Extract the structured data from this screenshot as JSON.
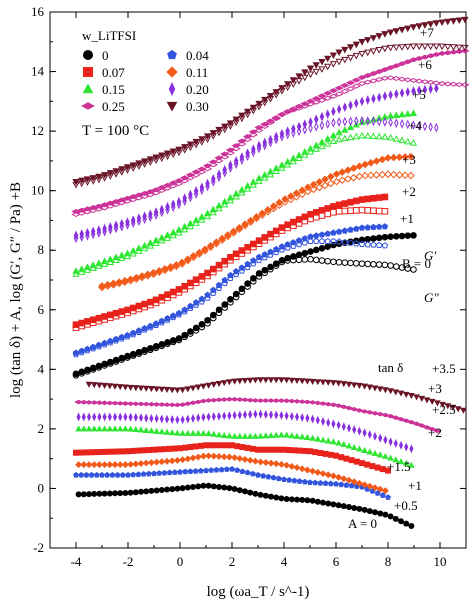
{
  "chart_data": {
    "type": "scatter",
    "title": "",
    "xlabel": "log (ωa_T / s^-1)",
    "ylabel": "log (tan δ) + A,  log (G′, G″ / Pa) +B",
    "xlim": [
      -5,
      11
    ],
    "ylim": [
      -2,
      16
    ],
    "xticks": [
      "-4",
      "-2",
      "0",
      "2",
      "4",
      "6",
      "8",
      "10"
    ],
    "yticks": [
      "-2",
      "0",
      "2",
      "4",
      "6",
      "8",
      "10",
      "12",
      "14",
      "16"
    ],
    "grid": false,
    "legend_title": "w_LiTFSI",
    "legend_placement": "top-left",
    "temperature_label": "T = 100 °C",
    "series": [
      {
        "name": "0",
        "color": "#000000",
        "marker": "circle",
        "shift_G": "B = 0",
        "shift_tan": "A = 0",
        "Gp_x": [
          -4,
          -3,
          -2,
          -1,
          0,
          1,
          2,
          3,
          4,
          5,
          6,
          7,
          8,
          9
        ],
        "Gp_y": [
          3.85,
          4.15,
          4.45,
          4.75,
          5.05,
          5.6,
          6.4,
          7.2,
          7.7,
          7.95,
          8.2,
          8.35,
          8.45,
          8.5
        ],
        "Gpp_x": [
          -4,
          -3,
          -2,
          -1,
          0,
          1,
          2,
          3,
          4,
          5,
          6,
          7,
          8,
          9
        ],
        "Gpp_y": [
          3.8,
          4.1,
          4.4,
          4.7,
          5.0,
          5.5,
          6.3,
          7.1,
          7.65,
          7.7,
          7.6,
          7.55,
          7.5,
          7.35
        ],
        "tan_x": [
          -3.9,
          -2,
          0,
          1,
          2,
          3,
          4,
          5,
          6,
          7,
          8,
          9
        ],
        "tan_y": [
          -0.2,
          -0.15,
          0.0,
          0.1,
          0.0,
          -0.2,
          -0.35,
          -0.4,
          -0.55,
          -0.7,
          -0.9,
          -1.3
        ]
      },
      {
        "name": "0.07",
        "color": "#e8231c",
        "marker": "square",
        "shift_G": "+2",
        "shift_tan": "+1.5",
        "Gp_x": [
          -4,
          -3,
          -2,
          -1,
          0,
          1,
          2,
          3,
          4,
          5,
          6,
          7,
          8
        ],
        "Gp_y": [
          5.5,
          5.75,
          6.0,
          6.3,
          6.7,
          7.2,
          7.8,
          8.3,
          8.8,
          9.2,
          9.5,
          9.7,
          9.8
        ],
        "Gpp_x": [
          -4,
          -3,
          -2,
          -1,
          0,
          1,
          2,
          3,
          4,
          5,
          6,
          7,
          8
        ],
        "Gpp_y": [
          5.4,
          5.65,
          5.9,
          6.2,
          6.6,
          7.1,
          7.7,
          8.2,
          8.7,
          9.05,
          9.3,
          9.35,
          9.3
        ],
        "tan_x": [
          -4,
          -2,
          0,
          1,
          2,
          3,
          4,
          5,
          6,
          7,
          8
        ],
        "tan_y": [
          1.2,
          1.25,
          1.35,
          1.45,
          1.45,
          1.3,
          1.3,
          1.25,
          1.1,
          0.85,
          0.6
        ]
      },
      {
        "name": "0.15",
        "color": "#2ee632",
        "marker": "triangle",
        "shift_G": "+4",
        "shift_tan": "+2",
        "Gp_x": [
          -4,
          -3,
          -2,
          -1,
          0,
          1,
          2,
          3,
          4,
          5,
          6,
          7,
          8,
          9
        ],
        "Gp_y": [
          7.3,
          7.6,
          7.9,
          8.3,
          8.7,
          9.2,
          9.8,
          10.4,
          10.9,
          11.4,
          11.9,
          12.3,
          12.5,
          12.6
        ],
        "Gpp_x": [
          -4,
          -3,
          -2,
          -1,
          0,
          1,
          2,
          3,
          4,
          5,
          6,
          7,
          8,
          9
        ],
        "Gpp_y": [
          7.2,
          7.5,
          7.8,
          8.2,
          8.6,
          9.1,
          9.7,
          10.3,
          10.8,
          11.3,
          11.7,
          11.85,
          11.8,
          11.6
        ],
        "tan_x": [
          -3.9,
          -2,
          0,
          1,
          2,
          3,
          4,
          5,
          6,
          7,
          8,
          9
        ],
        "tan_y": [
          2.0,
          2.0,
          1.85,
          1.85,
          1.75,
          1.75,
          1.8,
          1.7,
          1.55,
          1.3,
          1.05,
          0.75
        ]
      },
      {
        "name": "0.25",
        "color": "#cc3399",
        "marker": "diamond-h",
        "shift_G": "+6",
        "shift_tan": "+3",
        "Gp_x": [
          -4,
          -3,
          -2,
          -1,
          0,
          1,
          2,
          3,
          4,
          5,
          6,
          7,
          8,
          9,
          10,
          11
        ],
        "Gp_y": [
          9.3,
          9.5,
          9.75,
          10.0,
          10.35,
          10.8,
          11.4,
          12.1,
          12.6,
          13.0,
          13.4,
          13.8,
          14.1,
          14.4,
          14.6,
          14.7
        ],
        "Gpp_x": [
          -4,
          -3,
          -2,
          -1,
          0,
          1,
          2,
          3,
          4,
          5,
          6,
          7,
          8,
          9,
          10,
          11
        ],
        "Gpp_y": [
          9.2,
          9.4,
          9.65,
          9.9,
          10.25,
          10.7,
          11.3,
          12.0,
          12.6,
          12.9,
          13.2,
          13.6,
          13.8,
          13.7,
          13.6,
          13.55
        ],
        "tan_x": [
          -3.9,
          -2,
          0,
          1,
          2,
          3,
          4,
          5,
          6,
          7,
          8,
          9,
          10
        ],
        "tan_y": [
          2.9,
          2.85,
          2.8,
          2.95,
          3.0,
          2.95,
          2.95,
          2.9,
          2.8,
          2.6,
          2.45,
          2.2,
          1.9
        ]
      },
      {
        "name": "0.04",
        "color": "#3355dd",
        "marker": "pentagon",
        "shift_G": "+1",
        "shift_tan": "+0.5",
        "Gp_x": [
          -4,
          -3,
          -2,
          -1,
          0,
          1,
          2,
          3,
          4,
          5,
          6,
          7,
          8
        ],
        "Gp_y": [
          4.55,
          4.85,
          5.15,
          5.5,
          5.9,
          6.45,
          7.2,
          7.75,
          8.15,
          8.45,
          8.6,
          8.75,
          8.8
        ],
        "Gpp_x": [
          -4,
          -3,
          -2,
          -1,
          0,
          1,
          2,
          3,
          4,
          5,
          6,
          7,
          8
        ],
        "Gpp_y": [
          4.5,
          4.8,
          5.1,
          5.45,
          5.85,
          6.35,
          7.1,
          7.65,
          8.05,
          8.3,
          8.3,
          8.2,
          8.15
        ],
        "tan_x": [
          -4,
          -2,
          0,
          1,
          2,
          3,
          4,
          5,
          6,
          7,
          8
        ],
        "tan_y": [
          0.45,
          0.45,
          0.55,
          0.6,
          0.65,
          0.45,
          0.3,
          0.2,
          0.15,
          0.05,
          -0.3
        ]
      },
      {
        "name": "0.11",
        "color": "#f25a1a",
        "marker": "diamond",
        "shift_G": "+3",
        "shift_tan": "+1",
        "Gp_x": [
          -3,
          -2,
          -1,
          0,
          1,
          2,
          3,
          4,
          5,
          6,
          7,
          8,
          9
        ],
        "Gp_y": [
          6.8,
          7.0,
          7.25,
          7.55,
          8.05,
          8.6,
          9.15,
          9.7,
          10.15,
          10.55,
          10.85,
          11.1,
          11.15
        ],
        "Gpp_x": [
          -3,
          -2,
          -1,
          0,
          1,
          2,
          3,
          4,
          5,
          6,
          7,
          8,
          9
        ],
        "Gpp_y": [
          6.75,
          6.95,
          7.2,
          7.5,
          8.0,
          8.55,
          9.1,
          9.6,
          10.0,
          10.3,
          10.5,
          10.55,
          10.5
        ],
        "tan_x": [
          -3.9,
          -2,
          0,
          1,
          2,
          3,
          4,
          5,
          6,
          7,
          8
        ],
        "tan_y": [
          0.8,
          0.8,
          0.95,
          1.1,
          1.05,
          0.9,
          0.8,
          0.6,
          0.4,
          0.15,
          -0.1
        ]
      },
      {
        "name": "0.20",
        "color": "#8830dd",
        "marker": "thin-diamond",
        "shift_G": "+5",
        "shift_tan": "+2.5",
        "Gp_x": [
          -4,
          -3,
          -2,
          -1,
          0,
          1,
          2,
          3,
          4,
          5,
          6,
          7,
          8,
          9,
          10
        ],
        "Gp_y": [
          8.5,
          8.7,
          8.95,
          9.25,
          9.65,
          10.2,
          10.9,
          11.5,
          11.95,
          12.3,
          12.7,
          13.0,
          13.2,
          13.35,
          13.45
        ],
        "Gpp_x": [
          -4,
          -3,
          -2,
          -1,
          0,
          1,
          2,
          3,
          4,
          5,
          6,
          7,
          8,
          9,
          10
        ],
        "Gpp_y": [
          8.4,
          8.6,
          8.85,
          9.15,
          9.55,
          10.1,
          10.8,
          11.4,
          11.85,
          12.1,
          12.3,
          12.35,
          12.3,
          12.2,
          12.1
        ],
        "tan_x": [
          -3.9,
          -2,
          0,
          1,
          2,
          3,
          4,
          5,
          6,
          7,
          8,
          9
        ],
        "tan_y": [
          2.4,
          2.4,
          2.3,
          2.4,
          2.45,
          2.5,
          2.45,
          2.35,
          2.15,
          1.9,
          1.6,
          1.3
        ]
      },
      {
        "name": "0.30",
        "color": "#6a1428",
        "marker": "triangle-down",
        "shift_G": "+7",
        "shift_tan": "+3.5",
        "Gp_x": [
          -4,
          -3,
          -2,
          -1,
          0,
          1,
          2,
          3,
          4,
          5,
          6,
          7,
          8,
          9,
          10,
          11
        ],
        "Gp_y": [
          10.3,
          10.5,
          10.8,
          11.1,
          11.4,
          11.8,
          12.3,
          12.9,
          13.5,
          14.1,
          14.6,
          15.0,
          15.3,
          15.5,
          15.65,
          15.75
        ],
        "Gpp_x": [
          -4,
          -3,
          -2,
          -1,
          0,
          1,
          2,
          3,
          4,
          5,
          6,
          7,
          8,
          9,
          10,
          11
        ],
        "Gpp_y": [
          10.2,
          10.4,
          10.7,
          11.0,
          11.3,
          11.7,
          12.2,
          12.8,
          13.4,
          13.9,
          14.3,
          14.6,
          14.8,
          14.85,
          14.85,
          14.8
        ],
        "tan_x": [
          -3.5,
          -2,
          0,
          1,
          2,
          3,
          4,
          5,
          6,
          7,
          8,
          9,
          10,
          11
        ],
        "tan_y": [
          3.5,
          3.4,
          3.3,
          3.45,
          3.6,
          3.65,
          3.65,
          3.6,
          3.55,
          3.45,
          3.3,
          3.1,
          2.85,
          2.6
        ]
      }
    ],
    "annotations": {
      "Gprime": "G′",
      "Gdoubleprime": "G″",
      "tan_delta": "tan δ"
    }
  }
}
